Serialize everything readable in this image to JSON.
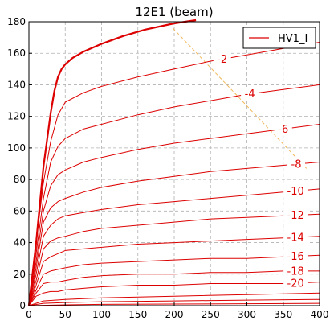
{
  "chart_data": {
    "type": "line",
    "title": "12E1 (beam)",
    "xlabel": "",
    "ylabel": "",
    "xlim": [
      0,
      400
    ],
    "ylim": [
      0,
      180
    ],
    "xticks": [
      0,
      50,
      100,
      150,
      200,
      250,
      300,
      350,
      400
    ],
    "yticks": [
      0,
      20,
      40,
      60,
      80,
      100,
      120,
      140,
      160,
      180
    ],
    "grid": true,
    "legend": {
      "position": "top-right",
      "entries": [
        "HV1_I"
      ]
    },
    "colors": {
      "curve": "#dd0000",
      "guide": "#f0b85a",
      "grid": "#b0b0b0"
    },
    "series": [
      {
        "name": "HV1_I",
        "label": "",
        "bold": true,
        "x": [
          0,
          10,
          20,
          30,
          35,
          40,
          45,
          50,
          60,
          75,
          100,
          130,
          160,
          200,
          230
        ],
        "y": [
          0,
          40,
          88,
          122,
          136,
          145,
          150,
          153,
          157,
          161,
          166,
          171,
          175,
          179,
          181
        ]
      },
      {
        "label": "-2",
        "x": [
          0,
          10,
          20,
          30,
          40,
          50,
          75,
          100,
          150,
          200,
          250,
          300,
          350,
          400
        ],
        "y": [
          0,
          40,
          78,
          104,
          121,
          129,
          135,
          139,
          145,
          150,
          155,
          159,
          163,
          167
        ]
      },
      {
        "label": "-4",
        "x": [
          0,
          10,
          20,
          30,
          40,
          50,
          75,
          100,
          150,
          200,
          250,
          300,
          350,
          400
        ],
        "y": [
          0,
          33,
          68,
          91,
          101,
          106,
          112,
          115,
          121,
          126,
          130,
          134,
          137,
          140
        ]
      },
      {
        "label": "-6",
        "x": [
          0,
          10,
          20,
          30,
          40,
          50,
          75,
          100,
          150,
          200,
          250,
          300,
          350,
          400
        ],
        "y": [
          0,
          28,
          60,
          76,
          83,
          86,
          91,
          94,
          99,
          103,
          106,
          109,
          112,
          115
        ]
      },
      {
        "label": "-8",
        "x": [
          0,
          10,
          20,
          30,
          40,
          50,
          75,
          100,
          150,
          200,
          250,
          300,
          350,
          400
        ],
        "y": [
          0,
          24,
          53,
          62,
          66,
          68,
          72,
          75,
          79,
          82,
          85,
          87,
          89,
          91
        ]
      },
      {
        "label": "-10",
        "x": [
          0,
          10,
          20,
          30,
          40,
          50,
          75,
          100,
          150,
          200,
          250,
          300,
          350,
          400
        ],
        "y": [
          0,
          20,
          44,
          51,
          55,
          57,
          59,
          61,
          64,
          66,
          68,
          70,
          72,
          74
        ]
      },
      {
        "label": "-12",
        "x": [
          0,
          10,
          20,
          30,
          40,
          50,
          75,
          100,
          150,
          200,
          250,
          300,
          350,
          400
        ],
        "y": [
          0,
          16,
          36,
          41,
          43,
          44,
          47,
          49,
          51,
          53,
          55,
          56,
          57,
          58
        ]
      },
      {
        "label": "-14",
        "x": [
          0,
          10,
          20,
          30,
          40,
          50,
          75,
          100,
          150,
          200,
          250,
          300,
          350,
          400
        ],
        "y": [
          0,
          13,
          28,
          31,
          33,
          35,
          36,
          37,
          39,
          40,
          41,
          42,
          43,
          44
        ]
      },
      {
        "label": "-16",
        "x": [
          0,
          10,
          20,
          30,
          40,
          50,
          75,
          100,
          150,
          200,
          250,
          300,
          350,
          400
        ],
        "y": [
          0,
          10,
          20,
          22,
          23,
          24,
          26,
          27,
          28,
          29,
          30,
          30,
          31,
          32
        ]
      },
      {
        "label": "-18",
        "x": [
          0,
          10,
          20,
          30,
          40,
          50,
          75,
          100,
          150,
          200,
          250,
          300,
          350,
          400
        ],
        "y": [
          0,
          8,
          14,
          15,
          15,
          16,
          18,
          19,
          20,
          20,
          21,
          21,
          22,
          22
        ]
      },
      {
        "label": "-20",
        "x": [
          0,
          10,
          20,
          30,
          40,
          50,
          75,
          100,
          150,
          200,
          250,
          300,
          350,
          400
        ],
        "y": [
          0,
          6,
          8,
          9,
          9,
          10,
          11,
          12,
          13,
          13,
          14,
          14,
          14,
          15
        ]
      },
      {
        "label": "",
        "x": [
          0,
          20,
          50,
          100,
          200,
          300,
          400
        ],
        "y": [
          0,
          3,
          4,
          5,
          6,
          7,
          8
        ]
      },
      {
        "label": "",
        "x": [
          0,
          20,
          50,
          100,
          200,
          300,
          400
        ],
        "y": [
          0,
          1.5,
          2,
          2.5,
          3,
          3.5,
          4
        ]
      },
      {
        "label": "",
        "x": [
          0,
          50,
          100,
          200,
          300,
          400
        ],
        "y": [
          0,
          0.5,
          0.8,
          1,
          1.2,
          1.5
        ]
      }
    ],
    "guide_line": {
      "x": [
        198,
        382
      ],
      "y": [
        176,
        87
      ]
    }
  }
}
